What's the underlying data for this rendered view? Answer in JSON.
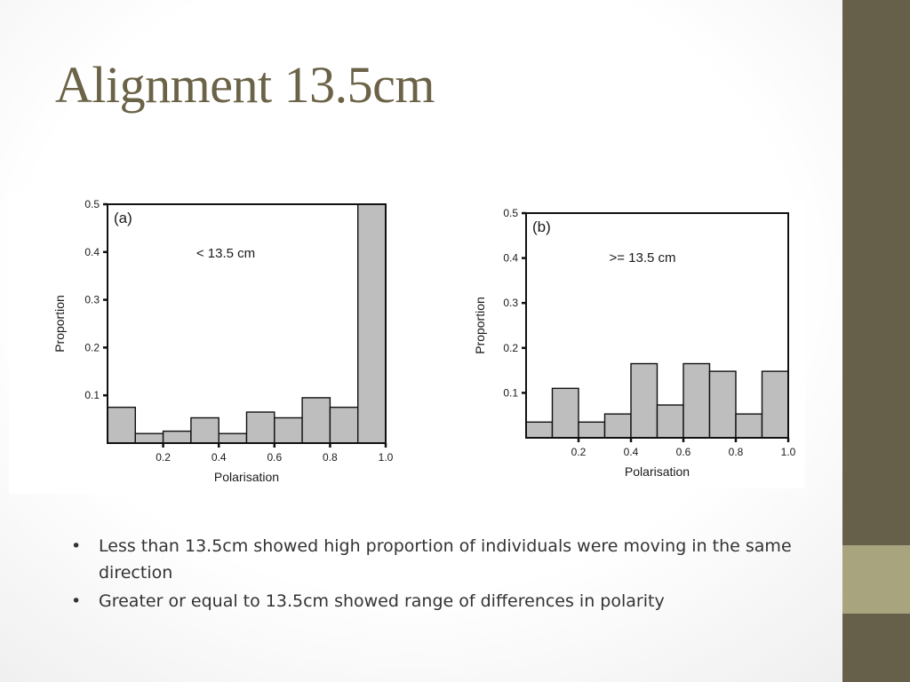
{
  "slide": {
    "title": "Alignment 13.5cm",
    "bullets": [
      "Less than 13.5cm showed high proportion of individuals  were moving in the same direction",
      "Greater or equal to 13.5cm showed range of differences in polarity"
    ],
    "bullet_glyph": "•",
    "colors": {
      "title": "#6b6347",
      "sidebar": "#665f4a",
      "sidebar_accent": "#a8a47e",
      "bar_fill": "#bebebe"
    }
  },
  "chart_data": [
    {
      "type": "bar",
      "panel_label": "(a)",
      "annotation": "< 13.5 cm",
      "xlabel": "Polarisation",
      "ylabel": "Proportion",
      "xlim": [
        0,
        1.0
      ],
      "ylim": [
        0,
        0.5
      ],
      "xticks": [
        "0.2",
        "0.4",
        "0.6",
        "0.8",
        "1.0"
      ],
      "yticks": [
        "0.1",
        "0.2",
        "0.3",
        "0.4",
        "0.5"
      ],
      "bin_edges": [
        0,
        0.1,
        0.2,
        0.3,
        0.4,
        0.5,
        0.6,
        0.7,
        0.8,
        0.9,
        1.0
      ],
      "values": [
        0.075,
        0.02,
        0.025,
        0.053,
        0.02,
        0.065,
        0.053,
        0.095,
        0.075,
        0.5
      ]
    },
    {
      "type": "bar",
      "panel_label": "(b)",
      "annotation": ">= 13.5 cm",
      "xlabel": "Polarisation",
      "ylabel": "Proportion",
      "xlim": [
        0,
        1.0
      ],
      "ylim": [
        0,
        0.5
      ],
      "xticks": [
        "0.2",
        "0.4",
        "0.6",
        "0.8",
        "1.0"
      ],
      "yticks": [
        "0.1",
        "0.2",
        "0.3",
        "0.4",
        "0.5"
      ],
      "bin_edges": [
        0,
        0.1,
        0.2,
        0.3,
        0.4,
        0.5,
        0.6,
        0.7,
        0.8,
        0.9,
        1.0
      ],
      "values": [
        0.035,
        0.11,
        0.035,
        0.053,
        0.165,
        0.073,
        0.165,
        0.148,
        0.053,
        0.148
      ]
    }
  ]
}
